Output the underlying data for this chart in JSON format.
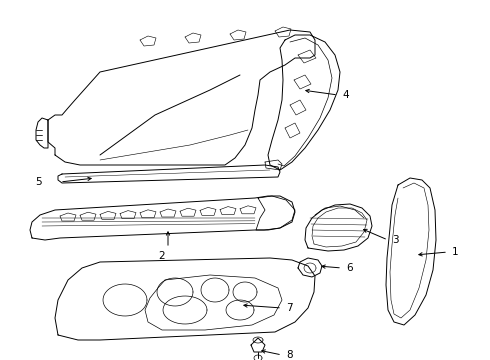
{
  "background_color": "#ffffff",
  "line_color": "#000000",
  "fig_width": 4.9,
  "fig_height": 3.6,
  "dpi": 100,
  "lw": 0.7
}
